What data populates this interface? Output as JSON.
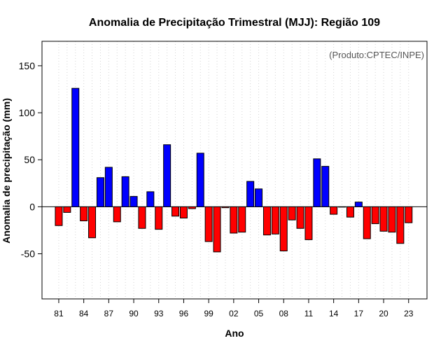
{
  "chart_data": {
    "type": "bar",
    "title": "Anomalia de Precipitação Trimestral (MJJ): Região 109",
    "xlabel": "Ano",
    "ylabel": "Anomalia de precipitação (mm)",
    "annotation": "(Produto:CPTEC/INPE)",
    "ylim": [
      -98,
      176
    ],
    "yticks": [
      -50,
      0,
      50,
      100,
      150
    ],
    "ytick_labels": [
      "-50",
      "0",
      "50",
      "100",
      "150"
    ],
    "grid": "vertical dotted",
    "categories": [
      "1981",
      "1982",
      "1983",
      "1984",
      "1985",
      "1986",
      "1987",
      "1988",
      "1989",
      "1990",
      "1991",
      "1992",
      "1993",
      "1994",
      "1995",
      "1996",
      "1997",
      "1998",
      "1999",
      "2000",
      "2001",
      "2002",
      "2003",
      "2004",
      "2005",
      "2006",
      "2007",
      "2008",
      "2009",
      "2010",
      "2011",
      "2012",
      "2013",
      "2014",
      "2015",
      "2016",
      "2017",
      "2018",
      "2019",
      "2020",
      "2021",
      "2022",
      "2023"
    ],
    "values": [
      -20,
      -6,
      126,
      -15,
      -33,
      31,
      42,
      -16,
      32,
      11,
      -23,
      16,
      -24,
      66,
      -10,
      -12,
      -2,
      57,
      -37,
      -48,
      -1,
      -28,
      -27,
      27,
      19,
      -30,
      -29,
      -47,
      -14,
      -23,
      -35,
      51,
      43,
      -8,
      0,
      -11,
      5,
      -34,
      -18,
      -26,
      -27,
      -39,
      -17
    ],
    "tick_categories": [
      "1981",
      "1984",
      "1987",
      "1990",
      "1993",
      "1996",
      "1999",
      "2002",
      "2005",
      "2008",
      "2011",
      "2014",
      "2017",
      "2020",
      "2023"
    ],
    "tick_labels": [
      "81",
      "84",
      "87",
      "90",
      "93",
      "96",
      "99",
      "02",
      "05",
      "08",
      "11",
      "14",
      "17",
      "20",
      "23"
    ],
    "colors": {
      "positive": "#0000ff",
      "negative": "#ff0000",
      "border": "#000000",
      "grid": "#d3d3d3",
      "zero_line": "#000000"
    }
  }
}
